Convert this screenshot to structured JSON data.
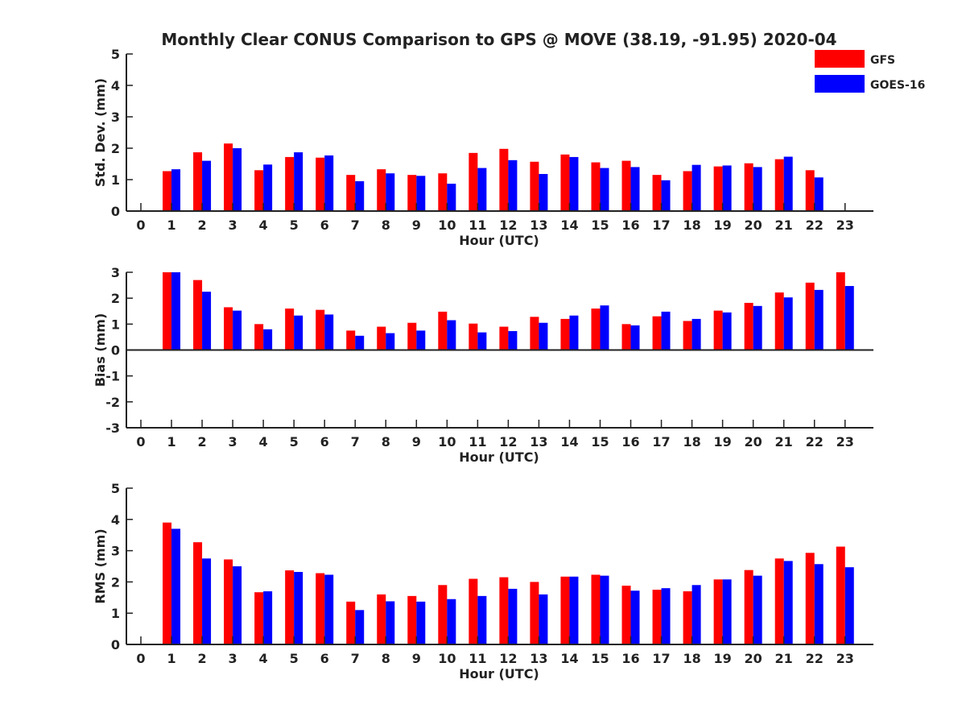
{
  "title": "Monthly Clear CONUS Comparison to GPS @ MOVE (38.19, -91.95) 2020-04",
  "legend": [
    {
      "label": "GFS",
      "color": "#ff0000"
    },
    {
      "label": "GOES-16",
      "color": "#0000ff"
    }
  ],
  "chart_data": [
    {
      "type": "bar",
      "x": [
        0,
        1,
        2,
        3,
        4,
        5,
        6,
        7,
        8,
        9,
        10,
        11,
        12,
        13,
        14,
        15,
        16,
        17,
        18,
        19,
        20,
        21,
        22,
        23
      ],
      "xlabel": "Hour (UTC)",
      "ylabel": "Std. Dev. (mm)",
      "ylim": [
        0,
        5
      ],
      "yticks": [
        0,
        1,
        2,
        3,
        4,
        5
      ],
      "series": [
        {
          "name": "GFS",
          "color": "#ff0000",
          "values": [
            null,
            1.27,
            1.87,
            2.15,
            1.3,
            1.72,
            1.7,
            1.15,
            1.33,
            1.15,
            1.2,
            1.85,
            1.98,
            1.57,
            1.8,
            1.55,
            1.6,
            1.15,
            1.27,
            1.42,
            1.52,
            1.65,
            1.3,
            null
          ]
        },
        {
          "name": "GOES-16",
          "color": "#0000ff",
          "values": [
            null,
            1.33,
            1.6,
            2.0,
            1.48,
            1.87,
            1.77,
            0.95,
            1.2,
            1.12,
            0.87,
            1.37,
            1.62,
            1.18,
            1.72,
            1.37,
            1.4,
            0.98,
            1.47,
            1.45,
            1.4,
            1.73,
            1.07,
            null
          ]
        }
      ]
    },
    {
      "type": "bar",
      "x": [
        0,
        1,
        2,
        3,
        4,
        5,
        6,
        7,
        8,
        9,
        10,
        11,
        12,
        13,
        14,
        15,
        16,
        17,
        18,
        19,
        20,
        21,
        22,
        23
      ],
      "xlabel": "Hour (UTC)",
      "ylabel": "Bias (mm)",
      "ylim": [
        -3,
        3
      ],
      "yticks": [
        -3,
        -2,
        -1,
        0,
        1,
        2,
        3
      ],
      "series": [
        {
          "name": "GFS",
          "color": "#ff0000",
          "values": [
            null,
            3.0,
            2.7,
            1.65,
            1.0,
            1.6,
            1.55,
            0.75,
            0.9,
            1.05,
            1.48,
            1.02,
            0.9,
            1.28,
            1.2,
            1.6,
            1.0,
            1.3,
            1.12,
            1.52,
            1.82,
            2.22,
            2.6,
            3.0
          ]
        },
        {
          "name": "GOES-16",
          "color": "#0000ff",
          "values": [
            null,
            3.0,
            2.25,
            1.52,
            0.8,
            1.33,
            1.37,
            0.55,
            0.65,
            0.75,
            1.15,
            0.68,
            0.73,
            1.05,
            1.33,
            1.72,
            0.95,
            1.48,
            1.2,
            1.45,
            1.7,
            2.03,
            2.32,
            2.47
          ]
        }
      ]
    },
    {
      "type": "bar",
      "x": [
        0,
        1,
        2,
        3,
        4,
        5,
        6,
        7,
        8,
        9,
        10,
        11,
        12,
        13,
        14,
        15,
        16,
        17,
        18,
        19,
        20,
        21,
        22,
        23
      ],
      "xlabel": "Hour (UTC)",
      "ylabel": "RMS (mm)",
      "ylim": [
        0,
        5
      ],
      "yticks": [
        0,
        1,
        2,
        3,
        4,
        5
      ],
      "series": [
        {
          "name": "GFS",
          "color": "#ff0000",
          "values": [
            null,
            3.9,
            3.27,
            2.72,
            1.67,
            2.37,
            2.28,
            1.37,
            1.6,
            1.55,
            1.9,
            2.1,
            2.15,
            2.0,
            2.17,
            2.23,
            1.88,
            1.75,
            1.7,
            2.08,
            2.38,
            2.75,
            2.93,
            3.13
          ]
        },
        {
          "name": "GOES-16",
          "color": "#0000ff",
          "values": [
            null,
            3.7,
            2.75,
            2.5,
            1.7,
            2.32,
            2.23,
            1.1,
            1.38,
            1.37,
            1.45,
            1.55,
            1.78,
            1.6,
            2.17,
            2.2,
            1.72,
            1.8,
            1.9,
            2.08,
            2.2,
            2.67,
            2.57,
            2.47
          ]
        }
      ]
    }
  ]
}
